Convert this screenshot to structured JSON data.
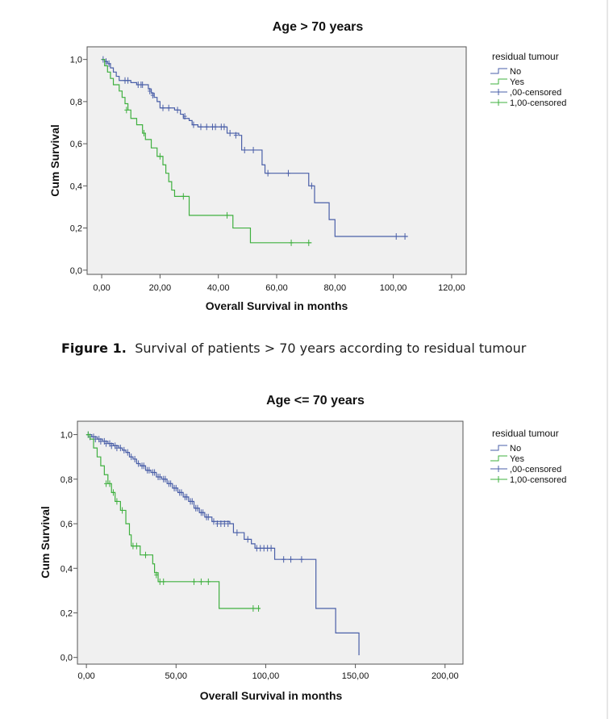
{
  "colors": {
    "blue": "#4a5fa8",
    "green": "#3fb03f",
    "plot_bg": "#f0f0f0",
    "frame": "#555555"
  },
  "caption": {
    "label": "Figure 1.",
    "text": "Survival of patients > 70 years according to residual tumour"
  },
  "chart_data": [
    {
      "type": "line",
      "title": "Age > 70 years",
      "xlabel": "Overall Survival in months",
      "ylabel": "Cum Survival",
      "xlim": [
        -5,
        125
      ],
      "ylim": [
        -0.02,
        1.06
      ],
      "xticks": [
        0,
        20,
        40,
        60,
        80,
        100,
        120
      ],
      "xtick_labels": [
        "0,00",
        "20,00",
        "40,00",
        "60,00",
        "80,00",
        "100,00",
        "120,00"
      ],
      "yticks": [
        0,
        0.2,
        0.4,
        0.6,
        0.8,
        1.0
      ],
      "ytick_labels": [
        "0,0",
        "0,2",
        "0,4",
        "0,6",
        "0,8",
        "1,0"
      ],
      "legend": {
        "title": "residual tumour",
        "position": "right",
        "entries": [
          {
            "label": "No",
            "kind": "step",
            "color": "blue"
          },
          {
            "label": "Yes",
            "kind": "step",
            "color": "green"
          },
          {
            "label": ",00-censored",
            "kind": "cross",
            "color": "blue"
          },
          {
            "label": "1,00-censored",
            "kind": "cross",
            "color": "green"
          }
        ]
      },
      "series": [
        {
          "name": "No",
          "color": "blue",
          "steps": [
            [
              0,
              1.0
            ],
            [
              1,
              0.99
            ],
            [
              2,
              0.98
            ],
            [
              3,
              0.96
            ],
            [
              4,
              0.94
            ],
            [
              5,
              0.92
            ],
            [
              6,
              0.9
            ],
            [
              10,
              0.89
            ],
            [
              12,
              0.88
            ],
            [
              15,
              0.88
            ],
            [
              16,
              0.86
            ],
            [
              17,
              0.84
            ],
            [
              18,
              0.82
            ],
            [
              19,
              0.8
            ],
            [
              20,
              0.77
            ],
            [
              24,
              0.77
            ],
            [
              25,
              0.76
            ],
            [
              27,
              0.74
            ],
            [
              28,
              0.72
            ],
            [
              30,
              0.71
            ],
            [
              31,
              0.69
            ],
            [
              33,
              0.68
            ],
            [
              40,
              0.68
            ],
            [
              43,
              0.65
            ],
            [
              47,
              0.64
            ],
            [
              48,
              0.57
            ],
            [
              51,
              0.57
            ],
            [
              55,
              0.5
            ],
            [
              56,
              0.46
            ],
            [
              70,
              0.46
            ],
            [
              71,
              0.4
            ],
            [
              73,
              0.32
            ],
            [
              78,
              0.32
            ],
            [
              78,
              0.24
            ],
            [
              80,
              0.16
            ],
            [
              105,
              0.16
            ]
          ],
          "censored": [
            [
              0.5,
              1.0
            ],
            [
              1.5,
              0.99
            ],
            [
              2.5,
              0.98
            ],
            [
              8,
              0.9
            ],
            [
              9,
              0.9
            ],
            [
              12.5,
              0.88
            ],
            [
              13.5,
              0.88
            ],
            [
              14,
              0.88
            ],
            [
              16.5,
              0.85
            ],
            [
              17.5,
              0.83
            ],
            [
              21,
              0.77
            ],
            [
              23,
              0.77
            ],
            [
              26,
              0.76
            ],
            [
              28.5,
              0.73
            ],
            [
              31.5,
              0.69
            ],
            [
              34,
              0.68
            ],
            [
              36,
              0.68
            ],
            [
              38,
              0.68
            ],
            [
              39,
              0.68
            ],
            [
              41,
              0.68
            ],
            [
              42,
              0.68
            ],
            [
              44,
              0.65
            ],
            [
              46,
              0.64
            ],
            [
              49,
              0.57
            ],
            [
              52,
              0.57
            ],
            [
              57,
              0.46
            ],
            [
              64,
              0.46
            ],
            [
              72,
              0.4
            ],
            [
              101,
              0.16
            ],
            [
              104,
              0.16
            ]
          ]
        },
        {
          "name": "Yes",
          "color": "green",
          "steps": [
            [
              0,
              1.0
            ],
            [
              1,
              0.97
            ],
            [
              2,
              0.94
            ],
            [
              3,
              0.91
            ],
            [
              4,
              0.88
            ],
            [
              6,
              0.85
            ],
            [
              7,
              0.82
            ],
            [
              8,
              0.79
            ],
            [
              9,
              0.76
            ],
            [
              10,
              0.72
            ],
            [
              12,
              0.69
            ],
            [
              14,
              0.65
            ],
            [
              15,
              0.62
            ],
            [
              17,
              0.58
            ],
            [
              19,
              0.54
            ],
            [
              21,
              0.5
            ],
            [
              22,
              0.46
            ],
            [
              23,
              0.42
            ],
            [
              24,
              0.38
            ],
            [
              25,
              0.35
            ],
            [
              29,
              0.35
            ],
            [
              30,
              0.26
            ],
            [
              44,
              0.26
            ],
            [
              45,
              0.2
            ],
            [
              50,
              0.2
            ],
            [
              51,
              0.13
            ],
            [
              72,
              0.13
            ]
          ],
          "censored": [
            [
              8.5,
              0.76
            ],
            [
              14.5,
              0.65
            ],
            [
              20,
              0.54
            ],
            [
              28,
              0.35
            ],
            [
              43,
              0.26
            ],
            [
              65,
              0.13
            ],
            [
              71,
              0.13
            ]
          ]
        }
      ]
    },
    {
      "type": "line",
      "title": "Age <= 70 years",
      "xlabel": "Overall Survival in months",
      "ylabel": "Cum Survival",
      "xlim": [
        -5,
        210
      ],
      "ylim": [
        -0.03,
        1.06
      ],
      "xticks": [
        0,
        50,
        100,
        150,
        200
      ],
      "xtick_labels": [
        "0,00",
        "50,00",
        "100,00",
        "150,00",
        "200,00"
      ],
      "yticks": [
        0,
        0.2,
        0.4,
        0.6,
        0.8,
        1.0
      ],
      "ytick_labels": [
        "0,0",
        "0,2",
        "0,4",
        "0,6",
        "0,8",
        "1,0"
      ],
      "legend": {
        "title": "residual tumour",
        "position": "right",
        "entries": [
          {
            "label": "No",
            "kind": "step",
            "color": "blue"
          },
          {
            "label": "Yes",
            "kind": "step",
            "color": "green"
          },
          {
            "label": ",00-censored",
            "kind": "cross",
            "color": "blue"
          },
          {
            "label": "1,00-censored",
            "kind": "cross",
            "color": "green"
          }
        ]
      },
      "series": [
        {
          "name": "No",
          "color": "blue",
          "steps": [
            [
              0,
              1.0
            ],
            [
              3,
              0.99
            ],
            [
              6,
              0.98
            ],
            [
              9,
              0.97
            ],
            [
              12,
              0.96
            ],
            [
              15,
              0.95
            ],
            [
              18,
              0.94
            ],
            [
              20,
              0.93
            ],
            [
              22,
              0.92
            ],
            [
              24,
              0.9
            ],
            [
              26,
              0.89
            ],
            [
              28,
              0.87
            ],
            [
              30,
              0.86
            ],
            [
              33,
              0.84
            ],
            [
              36,
              0.83
            ],
            [
              39,
              0.81
            ],
            [
              42,
              0.8
            ],
            [
              45,
              0.78
            ],
            [
              48,
              0.76
            ],
            [
              51,
              0.74
            ],
            [
              54,
              0.72
            ],
            [
              57,
              0.7
            ],
            [
              60,
              0.67
            ],
            [
              63,
              0.65
            ],
            [
              66,
              0.63
            ],
            [
              70,
              0.61
            ],
            [
              80,
              0.6
            ],
            [
              82,
              0.56
            ],
            [
              88,
              0.53
            ],
            [
              92,
              0.51
            ],
            [
              94,
              0.49
            ],
            [
              104,
              0.49
            ],
            [
              105,
              0.44
            ],
            [
              127,
              0.44
            ],
            [
              128,
              0.22
            ],
            [
              138,
              0.22
            ],
            [
              139,
              0.11
            ],
            [
              152,
              0.11
            ],
            [
              152,
              0.01
            ]
          ],
          "censored": [
            [
              1,
              1.0
            ],
            [
              2,
              0.99
            ],
            [
              4,
              0.99
            ],
            [
              5,
              0.98
            ],
            [
              7,
              0.98
            ],
            [
              8,
              0.97
            ],
            [
              10,
              0.97
            ],
            [
              11,
              0.96
            ],
            [
              13,
              0.96
            ],
            [
              14,
              0.95
            ],
            [
              16,
              0.95
            ],
            [
              17,
              0.94
            ],
            [
              19,
              0.94
            ],
            [
              21,
              0.93
            ],
            [
              23,
              0.92
            ],
            [
              25,
              0.9
            ],
            [
              27,
              0.89
            ],
            [
              29,
              0.87
            ],
            [
              31,
              0.86
            ],
            [
              32,
              0.86
            ],
            [
              34,
              0.84
            ],
            [
              35,
              0.84
            ],
            [
              37,
              0.83
            ],
            [
              38,
              0.83
            ],
            [
              40,
              0.81
            ],
            [
              41,
              0.81
            ],
            [
              43,
              0.8
            ],
            [
              44,
              0.8
            ],
            [
              46,
              0.78
            ],
            [
              47,
              0.78
            ],
            [
              49,
              0.76
            ],
            [
              50,
              0.76
            ],
            [
              52,
              0.74
            ],
            [
              53,
              0.74
            ],
            [
              55,
              0.72
            ],
            [
              56,
              0.72
            ],
            [
              58,
              0.7
            ],
            [
              59,
              0.7
            ],
            [
              61,
              0.67
            ],
            [
              62,
              0.67
            ],
            [
              64,
              0.65
            ],
            [
              65,
              0.65
            ],
            [
              67,
              0.63
            ],
            [
              68,
              0.63
            ],
            [
              71,
              0.61
            ],
            [
              73,
              0.6
            ],
            [
              75,
              0.6
            ],
            [
              77,
              0.6
            ],
            [
              79,
              0.6
            ],
            [
              84,
              0.56
            ],
            [
              90,
              0.53
            ],
            [
              95,
              0.49
            ],
            [
              97,
              0.49
            ],
            [
              99,
              0.49
            ],
            [
              101,
              0.49
            ],
            [
              103,
              0.49
            ],
            [
              110,
              0.44
            ],
            [
              114,
              0.44
            ],
            [
              120,
              0.44
            ]
          ]
        },
        {
          "name": "Yes",
          "color": "green",
          "steps": [
            [
              0,
              1.0
            ],
            [
              2,
              0.98
            ],
            [
              4,
              0.94
            ],
            [
              6,
              0.9
            ],
            [
              8,
              0.86
            ],
            [
              10,
              0.82
            ],
            [
              12,
              0.78
            ],
            [
              14,
              0.74
            ],
            [
              16,
              0.7
            ],
            [
              19,
              0.66
            ],
            [
              22,
              0.6
            ],
            [
              24,
              0.55
            ],
            [
              25,
              0.5
            ],
            [
              29,
              0.5
            ],
            [
              30,
              0.46
            ],
            [
              36,
              0.46
            ],
            [
              37,
              0.42
            ],
            [
              38,
              0.38
            ],
            [
              40,
              0.34
            ],
            [
              73,
              0.34
            ],
            [
              74,
              0.22
            ],
            [
              97,
              0.22
            ]
          ],
          "censored": [
            [
              1,
              1.0
            ],
            [
              11,
              0.78
            ],
            [
              13,
              0.78
            ],
            [
              15,
              0.74
            ],
            [
              17,
              0.7
            ],
            [
              20,
              0.66
            ],
            [
              26,
              0.5
            ],
            [
              28,
              0.5
            ],
            [
              33,
              0.46
            ],
            [
              39,
              0.37
            ],
            [
              41,
              0.34
            ],
            [
              43,
              0.34
            ],
            [
              60,
              0.34
            ],
            [
              64,
              0.34
            ],
            [
              68,
              0.34
            ],
            [
              93,
              0.22
            ],
            [
              96,
              0.22
            ]
          ]
        }
      ]
    }
  ]
}
